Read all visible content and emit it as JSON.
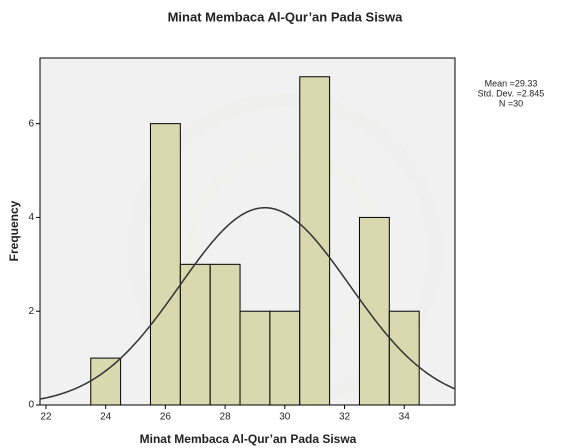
{
  "chart_data": {
    "type": "histogram",
    "title": "Minat Membaca Al-Qur’an Pada Siswa",
    "x_label": "Minat Membaca Al-Qur’an Pada Siswa",
    "y_label": "Frequency",
    "bins": [
      23.5,
      24.5,
      25.5,
      26.5,
      27.5,
      28.5,
      29.5,
      30.5,
      31.5,
      32.5,
      33.5,
      34.5
    ],
    "values": [
      1,
      0,
      6,
      3,
      3,
      2,
      2,
      7,
      0,
      4,
      2
    ],
    "color": "#d6d3a3",
    "curve_color": "#333333",
    "xlim": [
      21.8,
      35.7
    ],
    "xticks": [
      22,
      24,
      26,
      28,
      30,
      32,
      34
    ],
    "ylim": [
      0,
      7.4
    ],
    "yticks": [
      0,
      2,
      4,
      6
    ],
    "stats": [
      {
        "label": "Mean =29.33",
        "value": 29.33
      },
      {
        "label": "Std. Dev. =2.845",
        "value": 2.845
      },
      {
        "label": "N =30",
        "value": 30
      }
    ]
  }
}
